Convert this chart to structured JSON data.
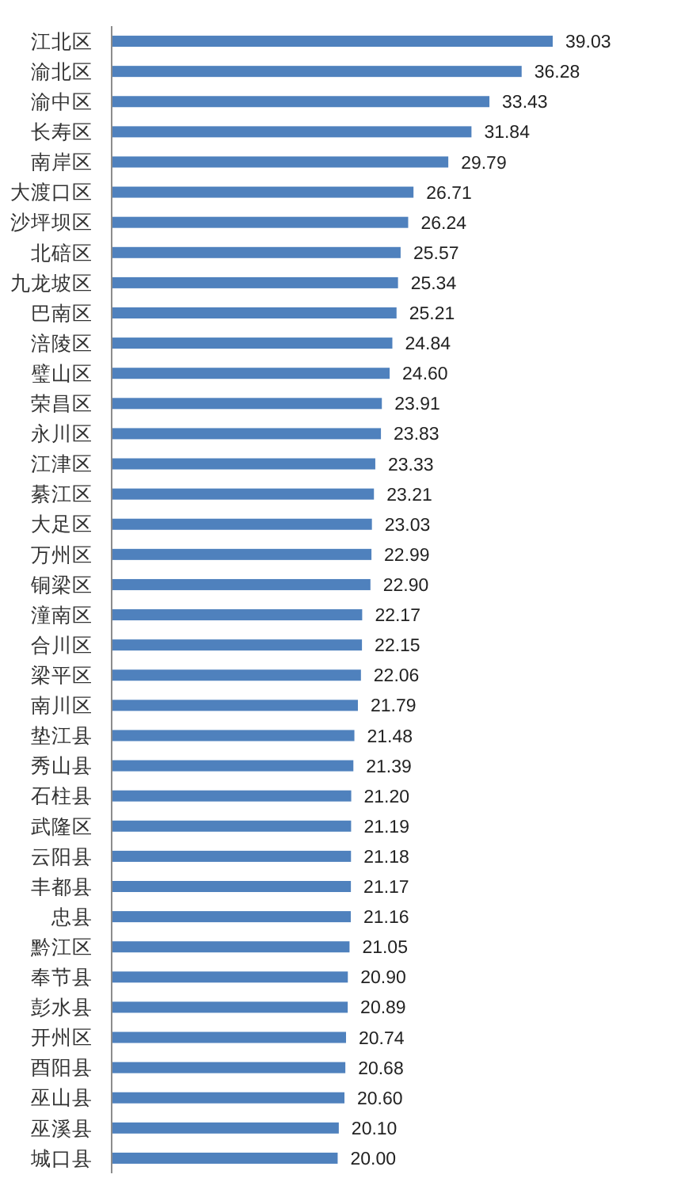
{
  "chart_data": {
    "type": "bar",
    "orientation": "horizontal",
    "categories": [
      "江北区",
      "渝北区",
      "渝中区",
      "长寿区",
      "南岸区",
      "大渡口区",
      "沙坪坝区",
      "北碚区",
      "九龙坡区",
      "巴南区",
      "涪陵区",
      "璧山区",
      "荣昌区",
      "永川区",
      "江津区",
      "綦江区",
      "大足区",
      "万州区",
      "铜梁区",
      "潼南区",
      "合川区",
      "梁平区",
      "南川区",
      "垫江县",
      "秀山县",
      "石柱县",
      "武隆区",
      "云阳县",
      "丰都县",
      "忠县",
      "黔江区",
      "奉节县",
      "彭水县",
      "开州区",
      "酉阳县",
      "巫山县",
      "巫溪县",
      "城口县"
    ],
    "values": [
      39.03,
      36.28,
      33.43,
      31.84,
      29.79,
      26.71,
      26.24,
      25.57,
      25.34,
      25.21,
      24.84,
      24.6,
      23.91,
      23.83,
      23.33,
      23.21,
      23.03,
      22.99,
      22.9,
      22.17,
      22.15,
      22.06,
      21.79,
      21.48,
      21.39,
      21.2,
      21.19,
      21.18,
      21.17,
      21.16,
      21.05,
      20.9,
      20.89,
      20.74,
      20.68,
      20.6,
      20.1,
      20.0
    ],
    "value_labels": [
      "39.03",
      "36.28",
      "33.43",
      "31.84",
      "29.79",
      "26.71",
      "26.24",
      "25.57",
      "25.34",
      "25.21",
      "24.84",
      "24.60",
      "23.91",
      "23.83",
      "23.33",
      "23.21",
      "23.03",
      "22.99",
      "22.90",
      "22.17",
      "22.15",
      "22.06",
      "21.79",
      "21.48",
      "21.39",
      "21.20",
      "21.19",
      "21.18",
      "21.17",
      "21.16",
      "21.05",
      "20.90",
      "20.89",
      "20.74",
      "20.68",
      "20.60",
      "20.10",
      "20.00"
    ],
    "color": "#4f81bd"
  }
}
